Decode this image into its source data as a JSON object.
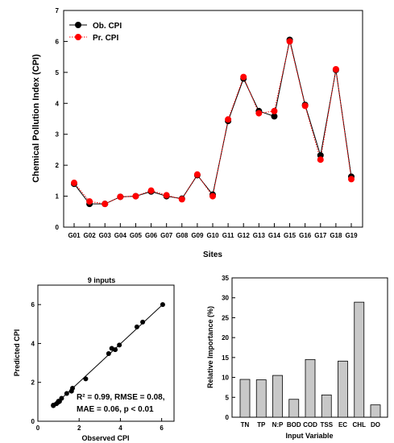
{
  "chart_data": [
    {
      "type": "line",
      "ylabel": "Chemical Pollution Index (CPI)",
      "xlabel": "Sites",
      "ylim": [
        0,
        7
      ],
      "yticks": [
        "0",
        "1",
        "2",
        "3",
        "4",
        "5",
        "6",
        "7"
      ],
      "legend_position": "top-left",
      "categories": [
        "G01",
        "G02",
        "G03",
        "G04",
        "G05",
        "G06",
        "G07",
        "G08",
        "G09",
        "G10",
        "G11",
        "G12",
        "G13",
        "G14",
        "G15",
        "G16",
        "G17",
        "G18",
        "G19"
      ],
      "series": [
        {
          "name": "Ob. CPI",
          "color": "#000000",
          "style": "solid",
          "values": [
            1.4,
            0.75,
            0.75,
            0.98,
            1.0,
            1.15,
            1.0,
            0.92,
            1.68,
            1.05,
            3.43,
            4.8,
            3.75,
            3.58,
            6.05,
            3.95,
            2.32,
            5.08,
            1.63
          ]
        },
        {
          "name": "Pr. CPI",
          "color": "#ff0000",
          "style": "dotted",
          "values": [
            1.43,
            0.83,
            0.75,
            0.98,
            1.0,
            1.18,
            1.03,
            0.9,
            1.7,
            1.0,
            3.48,
            4.85,
            3.68,
            3.75,
            6.0,
            3.92,
            2.18,
            5.1,
            1.55
          ]
        }
      ]
    },
    {
      "type": "scatter",
      "title": "9 inputs",
      "xlabel": "Observed CPI",
      "ylabel": "Predicted CPI",
      "xlim": [
        0,
        6.6
      ],
      "ylim": [
        0,
        7
      ],
      "xticks": [
        "0",
        "2",
        "4",
        "6"
      ],
      "yticks": [
        "0",
        "2",
        "4",
        "6"
      ],
      "annotation_line1": "R² = 0.99, RMSE = 0.08,",
      "annotation_line2": "MAE = 0.06, p < 0.01",
      "fit_line": [
        [
          0.75,
          0.78
        ],
        [
          6.05,
          6.0
        ]
      ],
      "points": [
        [
          0.75,
          0.8
        ],
        [
          0.9,
          0.9
        ],
        [
          0.98,
          0.98
        ],
        [
          1.0,
          1.0
        ],
        [
          1.05,
          1.02
        ],
        [
          1.15,
          1.18
        ],
        [
          1.4,
          1.43
        ],
        [
          1.63,
          1.55
        ],
        [
          1.68,
          1.7
        ],
        [
          2.32,
          2.18
        ],
        [
          3.43,
          3.48
        ],
        [
          3.58,
          3.75
        ],
        [
          3.75,
          3.68
        ],
        [
          3.95,
          3.92
        ],
        [
          4.8,
          4.85
        ],
        [
          5.08,
          5.1
        ],
        [
          6.05,
          6.0
        ],
        [
          0.75,
          0.83
        ],
        [
          1.0,
          1.03
        ]
      ]
    },
    {
      "type": "bar",
      "xlabel": "Input Variable",
      "ylabel": "Relative Importance (%)",
      "ylim": [
        0,
        35
      ],
      "yticks": [
        "0",
        "5",
        "10",
        "15",
        "20",
        "25",
        "30",
        "35"
      ],
      "categories": [
        "TN",
        "TP",
        "N:P",
        "BOD",
        "COD",
        "TSS",
        "EC",
        "CHL",
        "DO"
      ],
      "values": [
        9.5,
        9.4,
        10.5,
        4.5,
        14.5,
        5.6,
        14.1,
        28.9,
        3.1
      ],
      "bar_color": "#c8c8c8"
    }
  ]
}
